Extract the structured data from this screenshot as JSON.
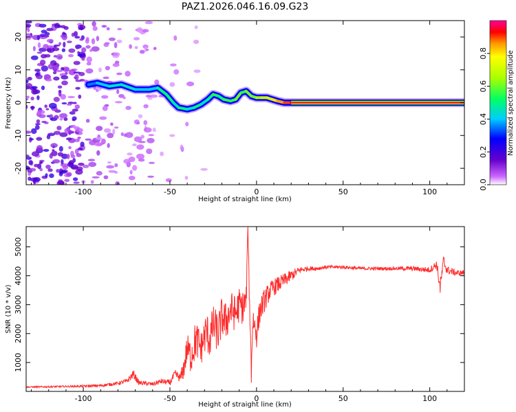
{
  "title": "PAZ1.2026.046.16.09.G23",
  "chart_data": [
    {
      "type": "heatmap",
      "name": "spectrogram",
      "xlabel": "Height of straight line (km)",
      "ylabel": "Frequency (Hz)",
      "xlim": [
        -133,
        120
      ],
      "ylim": [
        -25,
        25
      ],
      "xticks": [
        -100,
        -50,
        0,
        50,
        100
      ],
      "yticks": [
        -20,
        -10,
        0,
        10,
        20
      ],
      "colorbar": {
        "label": "Normalized spectral amplitude",
        "range": [
          0,
          1
        ],
        "ticks": [
          0.0,
          0.2,
          0.4,
          0.6,
          0.8
        ],
        "tick_labels": [
          "0.0",
          "0.2",
          "0.4",
          "0.6",
          "0.8"
        ]
      },
      "ridge": {
        "x": [
          -97,
          -92,
          -85,
          -78,
          -70,
          -62,
          -57,
          -52,
          -48,
          -45,
          -40,
          -36,
          -32,
          -28,
          -25,
          -22,
          -19,
          -15,
          -12,
          -9,
          -6,
          -3,
          0,
          3,
          6,
          9,
          12,
          16,
          20,
          24,
          120
        ],
        "freq": [
          5.5,
          6.0,
          5.0,
          5.5,
          4.0,
          4.0,
          4.5,
          2.5,
          0.0,
          -1.5,
          -2.0,
          -1.5,
          -0.5,
          1.0,
          2.5,
          2.0,
          1.0,
          0.5,
          1.0,
          3.0,
          3.5,
          2.0,
          1.5,
          1.5,
          1.5,
          1.0,
          0.5,
          0.0,
          0.0,
          0.0,
          0.0
        ],
        "amplitude": [
          0.35,
          0.4,
          0.45,
          0.45,
          0.4,
          0.4,
          0.5,
          0.5,
          0.45,
          0.5,
          0.45,
          0.5,
          0.45,
          0.5,
          0.55,
          0.5,
          0.55,
          0.55,
          0.6,
          0.55,
          0.6,
          0.6,
          0.65,
          0.7,
          0.7,
          0.8,
          0.85,
          0.9,
          0.95,
          1.0,
          1.0
        ]
      }
    },
    {
      "type": "line",
      "name": "snr",
      "xlabel": "Height of straight line (km)",
      "ylabel": "SNR (10 * v/v)",
      "xlim": [
        -133,
        120
      ],
      "ylim": [
        0,
        5700
      ],
      "xticks": [
        -100,
        -50,
        0,
        50,
        100
      ],
      "yticks": [
        1000,
        2000,
        3000,
        4000,
        5000
      ],
      "series": [
        {
          "name": "SNR",
          "color": "#ff2a2a",
          "x": [
            -133,
            -120,
            -110,
            -100,
            -90,
            -80,
            -75,
            -71,
            -68,
            -60,
            -55,
            -50,
            -47,
            -44,
            -42,
            -40,
            -38,
            -35,
            -32,
            -29,
            -27,
            -25,
            -22,
            -20,
            -18,
            -15,
            -12,
            -10,
            -8,
            -6,
            -5,
            -4,
            -3,
            -2,
            0,
            2,
            5,
            8,
            10,
            15,
            20,
            25,
            30,
            35,
            40,
            50,
            60,
            70,
            80,
            90,
            100,
            104,
            106,
            108,
            110,
            115,
            120
          ],
          "y": [
            150,
            160,
            170,
            180,
            200,
            280,
            350,
            600,
            300,
            250,
            350,
            300,
            600,
            450,
            800,
            1500,
            1200,
            1800,
            1500,
            2100,
            1800,
            2300,
            2000,
            2600,
            2400,
            2800,
            2700,
            3000,
            2900,
            3100,
            5700,
            3000,
            900,
            2500,
            2000,
            2800,
            3200,
            3500,
            3600,
            3800,
            4000,
            4200,
            4250,
            4250,
            4300,
            4300,
            4250,
            4250,
            4250,
            4250,
            4200,
            4400,
            3600,
            4500,
            4200,
            4100,
            4100
          ],
          "jitter": [
            20,
            30,
            30,
            40,
            50,
            60,
            80,
            150,
            80,
            70,
            90,
            100,
            150,
            150,
            400,
            500,
            600,
            700,
            600,
            700,
            700,
            700,
            700,
            700,
            700,
            700,
            600,
            600,
            600,
            600,
            0,
            500,
            0,
            500,
            500,
            450,
            400,
            300,
            300,
            250,
            200,
            120,
            80,
            70,
            60,
            60,
            60,
            60,
            60,
            80,
            100,
            150,
            300,
            250,
            150,
            100,
            100
          ]
        }
      ]
    }
  ]
}
